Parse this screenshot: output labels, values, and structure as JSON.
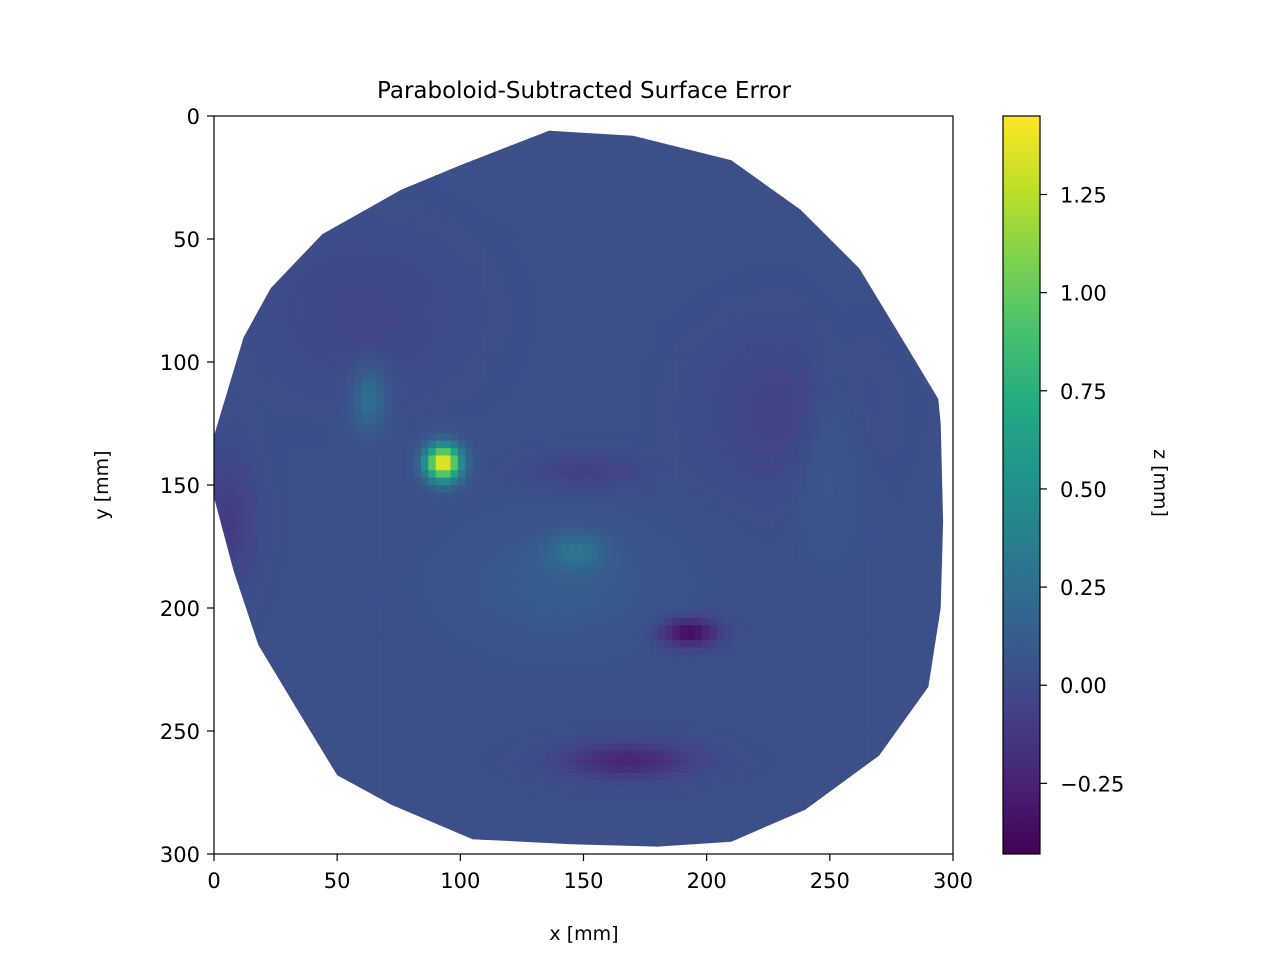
{
  "chart_data": {
    "type": "heatmap",
    "title": "Paraboloid-Subtracted Surface Error",
    "xlabel": "x [mm]",
    "ylabel": "y [mm]",
    "xlim": [
      0,
      300
    ],
    "ylim": [
      300,
      0
    ],
    "y_axis_inverted": true,
    "x_ticks": [
      0,
      50,
      100,
      150,
      200,
      250,
      300
    ],
    "y_ticks": [
      0,
      50,
      100,
      150,
      200,
      250,
      300
    ],
    "colormap": "viridis",
    "colorbar": {
      "label": "z [mm]",
      "range": [
        -0.43,
        1.45
      ],
      "ticks": [
        -0.25,
        0.0,
        0.25,
        0.5,
        0.75,
        1.0,
        1.25
      ],
      "tick_labels": [
        "−0.25",
        "0.00",
        "0.25",
        "0.50",
        "0.75",
        "1.00",
        "1.25"
      ]
    },
    "baseline_z": 0.02,
    "mirror_outline": [
      [
        136,
        6
      ],
      [
        170,
        8
      ],
      [
        210,
        18
      ],
      [
        238,
        38
      ],
      [
        262,
        62
      ],
      [
        282,
        95
      ],
      [
        294,
        115
      ],
      [
        295,
        125
      ],
      [
        296,
        165
      ],
      [
        295,
        200
      ],
      [
        290,
        232
      ],
      [
        270,
        260
      ],
      [
        240,
        282
      ],
      [
        210,
        295
      ],
      [
        180,
        297
      ],
      [
        145,
        296
      ],
      [
        105,
        294
      ],
      [
        72,
        280
      ],
      [
        50,
        268
      ],
      [
        33,
        240
      ],
      [
        18,
        215
      ],
      [
        8,
        185
      ],
      [
        0,
        155
      ],
      [
        0,
        130
      ],
      [
        12,
        90
      ],
      [
        23,
        70
      ],
      [
        44,
        48
      ],
      [
        76,
        30
      ],
      [
        100,
        20
      ],
      [
        123,
        11
      ]
    ],
    "features": [
      {
        "x": 93,
        "y": 141,
        "z": 1.45,
        "sigma_x": 5,
        "sigma_y": 5
      },
      {
        "x": 63,
        "y": 115,
        "z": 0.25,
        "sigma_x": 5,
        "sigma_y": 9
      },
      {
        "x": 147,
        "y": 177,
        "z": 0.22,
        "sigma_x": 8,
        "sigma_y": 5
      },
      {
        "x": 193,
        "y": 210,
        "z": -0.4,
        "sigma_x": 8,
        "sigma_y": 4
      },
      {
        "x": 168,
        "y": 262,
        "z": -0.25,
        "sigma_x": 18,
        "sigma_y": 5
      },
      {
        "x": 140,
        "y": 190,
        "z": 0.1,
        "sigma_x": 30,
        "sigma_y": 18
      },
      {
        "x": 230,
        "y": 120,
        "z": -0.08,
        "sigma_x": 20,
        "sigma_y": 20
      },
      {
        "x": 60,
        "y": 80,
        "z": -0.06,
        "sigma_x": 25,
        "sigma_y": 20
      },
      {
        "x": 250,
        "y": 140,
        "z": 0.08,
        "sigma_x": 8,
        "sigma_y": 25
      },
      {
        "x": 5,
        "y": 165,
        "z": -0.12,
        "sigma_x": 8,
        "sigma_y": 18
      },
      {
        "x": 150,
        "y": 145,
        "z": -0.1,
        "sigma_x": 15,
        "sigma_y": 5
      }
    ]
  }
}
